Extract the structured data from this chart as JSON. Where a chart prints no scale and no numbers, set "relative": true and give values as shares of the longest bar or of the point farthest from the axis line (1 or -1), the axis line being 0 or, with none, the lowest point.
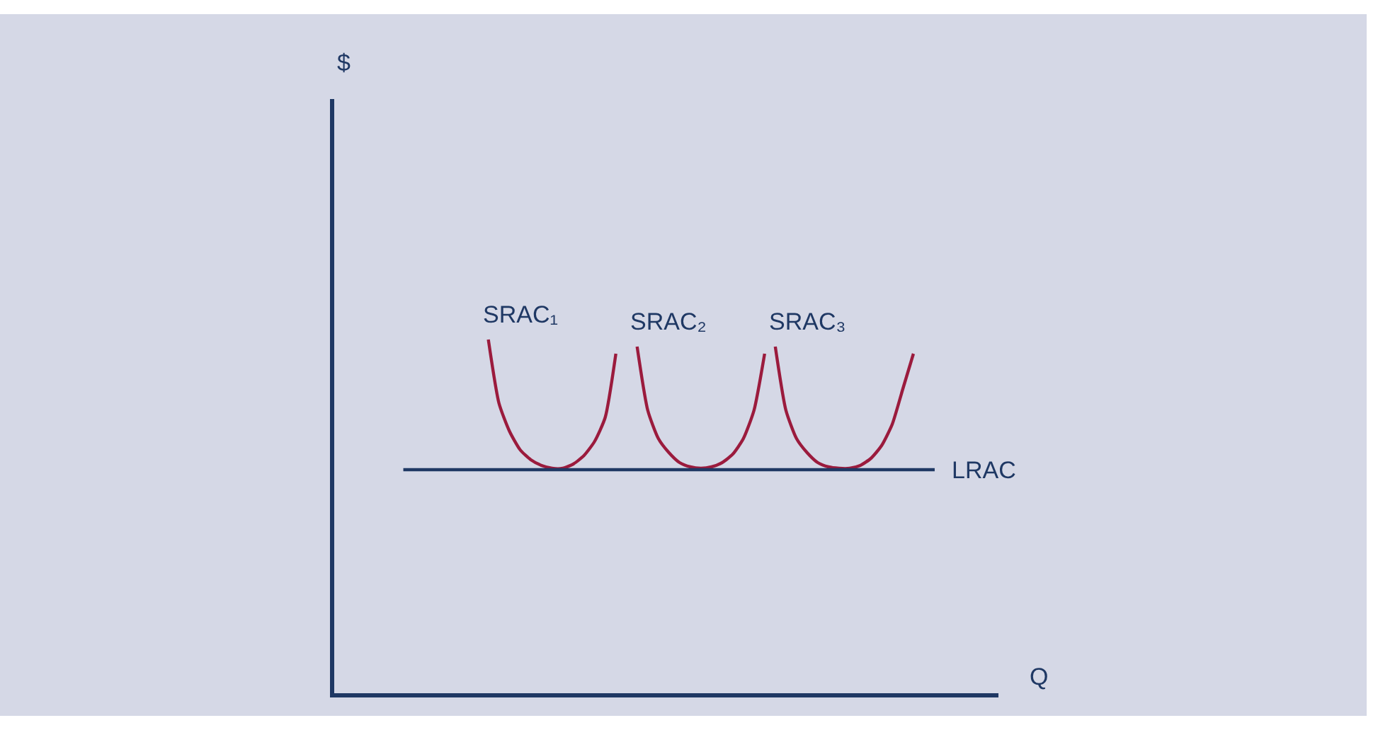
{
  "chart_data": {
    "type": "line",
    "relative": true,
    "xlabel": "Q",
    "annotations": [
      "$"
    ],
    "grid": false,
    "legend": false,
    "marker": "none",
    "line_style": "solid",
    "categories": [
      null,
      null,
      null,
      null,
      null,
      null,
      null,
      null,
      null,
      null,
      null,
      null,
      null,
      null,
      null,
      null,
      null,
      null,
      null,
      null,
      null,
      null,
      null,
      null,
      null,
      null,
      null,
      null,
      null,
      null,
      null,
      null,
      null,
      null,
      null,
      null,
      null,
      null,
      null,
      null,
      null,
      null,
      null,
      null,
      null,
      null,
      null,
      null,
      null,
      null,
      null
    ],
    "series": [
      {
        "name": "SRAC₁",
        "color": "#9b1b3d",
        "values": [
          null,
          null,
          null,
          null,
          null,
          null,
          null,
          null,
          1.0,
          0.82,
          0.74,
          0.688,
          0.66,
          0.644,
          0.636,
          0.636,
          0.648,
          0.672,
          0.712,
          0.78,
          0.96,
          null,
          null,
          null,
          null,
          null,
          null,
          null,
          null,
          null,
          null,
          null,
          null,
          null,
          null,
          null,
          null,
          null,
          null,
          null,
          null,
          null,
          null,
          null,
          null,
          null,
          null,
          null,
          null,
          null,
          null
        ]
      },
      {
        "name": "SRAC₂",
        "color": "#9b1b3d",
        "values": [
          null,
          null,
          null,
          null,
          null,
          null,
          null,
          null,
          null,
          null,
          null,
          null,
          null,
          null,
          null,
          null,
          null,
          null,
          null,
          null,
          null,
          null,
          0.98,
          0.8,
          0.72,
          0.68,
          0.652,
          0.64,
          0.636,
          0.64,
          0.652,
          0.676,
          0.72,
          0.8,
          0.96,
          null,
          null,
          null,
          null,
          null,
          null,
          null,
          null,
          null,
          null,
          null,
          null,
          null,
          null,
          null,
          null
        ]
      },
      {
        "name": "SRAC₃",
        "color": "#9b1b3d",
        "values": [
          null,
          null,
          null,
          null,
          null,
          null,
          null,
          null,
          null,
          null,
          null,
          null,
          null,
          null,
          null,
          null,
          null,
          null,
          null,
          null,
          null,
          null,
          null,
          null,
          null,
          null,
          null,
          null,
          null,
          null,
          null,
          null,
          null,
          null,
          null,
          0.98,
          0.8,
          0.72,
          0.68,
          0.652,
          0.64,
          0.636,
          0.636,
          0.644,
          0.664,
          0.7,
          0.76,
          0.86,
          0.96,
          null,
          null
        ]
      },
      {
        "name": "LRAC",
        "color": "#1f3864",
        "values": [
          0.632,
          0.632,
          0.632,
          0.632,
          0.632,
          0.632,
          0.632,
          0.632,
          0.632,
          0.632,
          0.632,
          0.632,
          0.632,
          0.632,
          0.632,
          0.632,
          0.632,
          0.632,
          0.632,
          0.632,
          0.632,
          0.632,
          0.632,
          0.632,
          0.632,
          0.632,
          0.632,
          0.632,
          0.632,
          0.632,
          0.632,
          0.632,
          0.632,
          0.632,
          0.632,
          0.632,
          0.632,
          0.632,
          0.632,
          0.632,
          0.632,
          0.632,
          0.632,
          0.632,
          0.632,
          0.632,
          0.632,
          0.632,
          0.632,
          0.632,
          0.632
        ]
      }
    ]
  }
}
